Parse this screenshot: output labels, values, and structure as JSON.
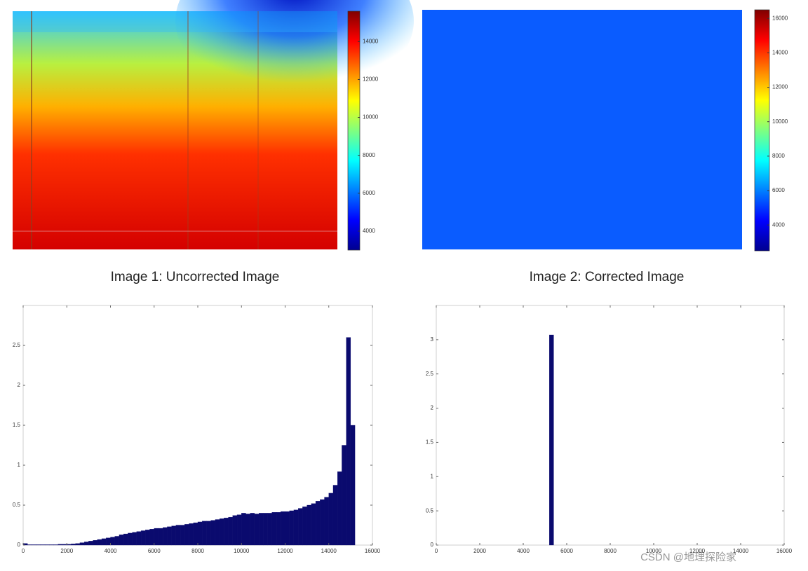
{
  "chart_data": [
    {
      "type": "heatmap",
      "title": "Image 1: Uncorrected Image",
      "colorbar": {
        "clim": [
          3000,
          15600
        ],
        "ticks": [
          4000,
          6000,
          8000,
          10000,
          12000,
          14000
        ]
      }
    },
    {
      "type": "heatmap",
      "title": "Image 2: Corrected Image",
      "color": "#0a5cff",
      "colorbar": {
        "clim": [
          2500,
          16500
        ],
        "ticks": [
          4000,
          6000,
          8000,
          10000,
          12000,
          14000,
          16000
        ]
      }
    },
    {
      "type": "histogram",
      "color": "#0a0a6e",
      "bins": [
        0,
        200,
        400,
        600,
        800,
        1000,
        1200,
        1400,
        1600,
        1800,
        2000,
        2200,
        2400,
        2600,
        2800,
        3000,
        3200,
        3400,
        3600,
        3800,
        4000,
        4200,
        4400,
        4600,
        4800,
        5000,
        5200,
        5400,
        5600,
        5800,
        6000,
        6200,
        6400,
        6600,
        6800,
        7000,
        7200,
        7400,
        7600,
        7800,
        8000,
        8200,
        8400,
        8600,
        8800,
        9000,
        9200,
        9400,
        9600,
        9800,
        10000,
        10200,
        10400,
        10600,
        10800,
        11000,
        11200,
        11400,
        11600,
        11800,
        12000,
        12200,
        12400,
        12600,
        12800,
        13000,
        13200,
        13400,
        13600,
        13800,
        14000,
        14200,
        14400,
        14600,
        14800,
        15000,
        15200
      ],
      "values": [
        0.02,
        0.005,
        0.005,
        0.005,
        0.005,
        0.005,
        0.005,
        0.005,
        0.01,
        0.01,
        0.01,
        0.015,
        0.02,
        0.03,
        0.04,
        0.05,
        0.06,
        0.07,
        0.08,
        0.09,
        0.1,
        0.11,
        0.13,
        0.14,
        0.15,
        0.16,
        0.17,
        0.18,
        0.19,
        0.2,
        0.21,
        0.21,
        0.22,
        0.23,
        0.24,
        0.25,
        0.25,
        0.26,
        0.27,
        0.28,
        0.29,
        0.3,
        0.3,
        0.31,
        0.32,
        0.33,
        0.34,
        0.35,
        0.37,
        0.38,
        0.4,
        0.39,
        0.4,
        0.39,
        0.4,
        0.4,
        0.4,
        0.41,
        0.41,
        0.42,
        0.42,
        0.43,
        0.44,
        0.46,
        0.48,
        0.5,
        0.52,
        0.55,
        0.57,
        0.6,
        0.65,
        0.75,
        0.92,
        1.25,
        2.6,
        1.5
      ],
      "xlim": [
        0,
        16000
      ],
      "xticks": [
        0,
        2000,
        4000,
        6000,
        8000,
        10000,
        12000,
        14000,
        16000
      ],
      "ylim": [
        0,
        3
      ],
      "yticks": [
        0,
        0.5,
        1,
        1.5,
        2,
        2.5
      ]
    },
    {
      "type": "histogram",
      "color": "#0a0a6e",
      "bins": [
        5200,
        5400
      ],
      "values": [
        3.07
      ],
      "xlim": [
        0,
        16000
      ],
      "xticks": [
        0,
        2000,
        4000,
        6000,
        8000,
        10000,
        12000,
        14000,
        16000
      ],
      "ylim": [
        0,
        3.5
      ],
      "yticks": [
        0,
        0.5,
        1,
        1.5,
        2,
        2.5,
        3
      ]
    }
  ],
  "watermark": "CSDN @地理探险家"
}
